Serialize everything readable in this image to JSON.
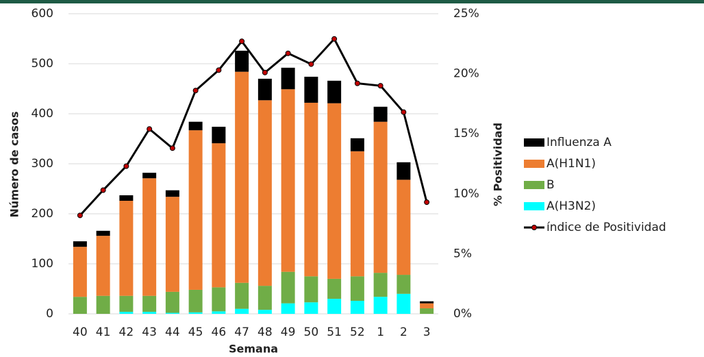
{
  "chart_data": {
    "type": "bar",
    "stacked": true,
    "x_label": "Semana",
    "y_label": "Número de casos",
    "y2_label": "% Positividad",
    "categories": [
      "40",
      "41",
      "42",
      "43",
      "44",
      "45",
      "46",
      "47",
      "48",
      "49",
      "50",
      "51",
      "52",
      "1",
      "2",
      "3"
    ],
    "series": [
      {
        "name": "Influenza A",
        "color": "#000000",
        "values": [
          11,
          10,
          11,
          11,
          13,
          17,
          33,
          42,
          43,
          43,
          52,
          45,
          26,
          30,
          35,
          4
        ]
      },
      {
        "name": "A(H1N1)",
        "color": "#ed7d31",
        "values": [
          100,
          120,
          190,
          235,
          190,
          319,
          288,
          422,
          371,
          365,
          347,
          351,
          250,
          302,
          190,
          10
        ]
      },
      {
        "name": "B",
        "color": "#70ad47",
        "values": [
          34,
          36,
          32,
          32,
          42,
          45,
          48,
          52,
          48,
          63,
          52,
          40,
          49,
          48,
          38,
          11
        ]
      },
      {
        "name": "A(H3N2)",
        "color": "#00ffff",
        "values": [
          0,
          0,
          4,
          4,
          2,
          3,
          5,
          10,
          8,
          21,
          23,
          30,
          26,
          34,
          40,
          0
        ]
      },
      {
        "name": "índice de Positividad",
        "color": "#000000",
        "type": "line",
        "axis": "y2",
        "marker_color": "#c00000",
        "values": [
          8.2,
          10.3,
          12.3,
          15.4,
          13.8,
          18.6,
          20.3,
          22.7,
          20.1,
          21.7,
          20.8,
          22.9,
          19.2,
          19.0,
          16.8,
          9.3
        ]
      }
    ],
    "ylim": [
      0,
      600
    ],
    "yticks": [
      0,
      100,
      200,
      300,
      400,
      500,
      600
    ],
    "y2lim": [
      0,
      25
    ],
    "y2ticks": [
      {
        "value": 0,
        "label": "0%"
      },
      {
        "value": 5,
        "label": "5%"
      },
      {
        "value": 10,
        "label": "10%"
      },
      {
        "value": 15,
        "label": "15%"
      },
      {
        "value": 20,
        "label": "20%"
      },
      {
        "value": 25,
        "label": "25%"
      }
    ],
    "grid": true,
    "legend": "right"
  }
}
